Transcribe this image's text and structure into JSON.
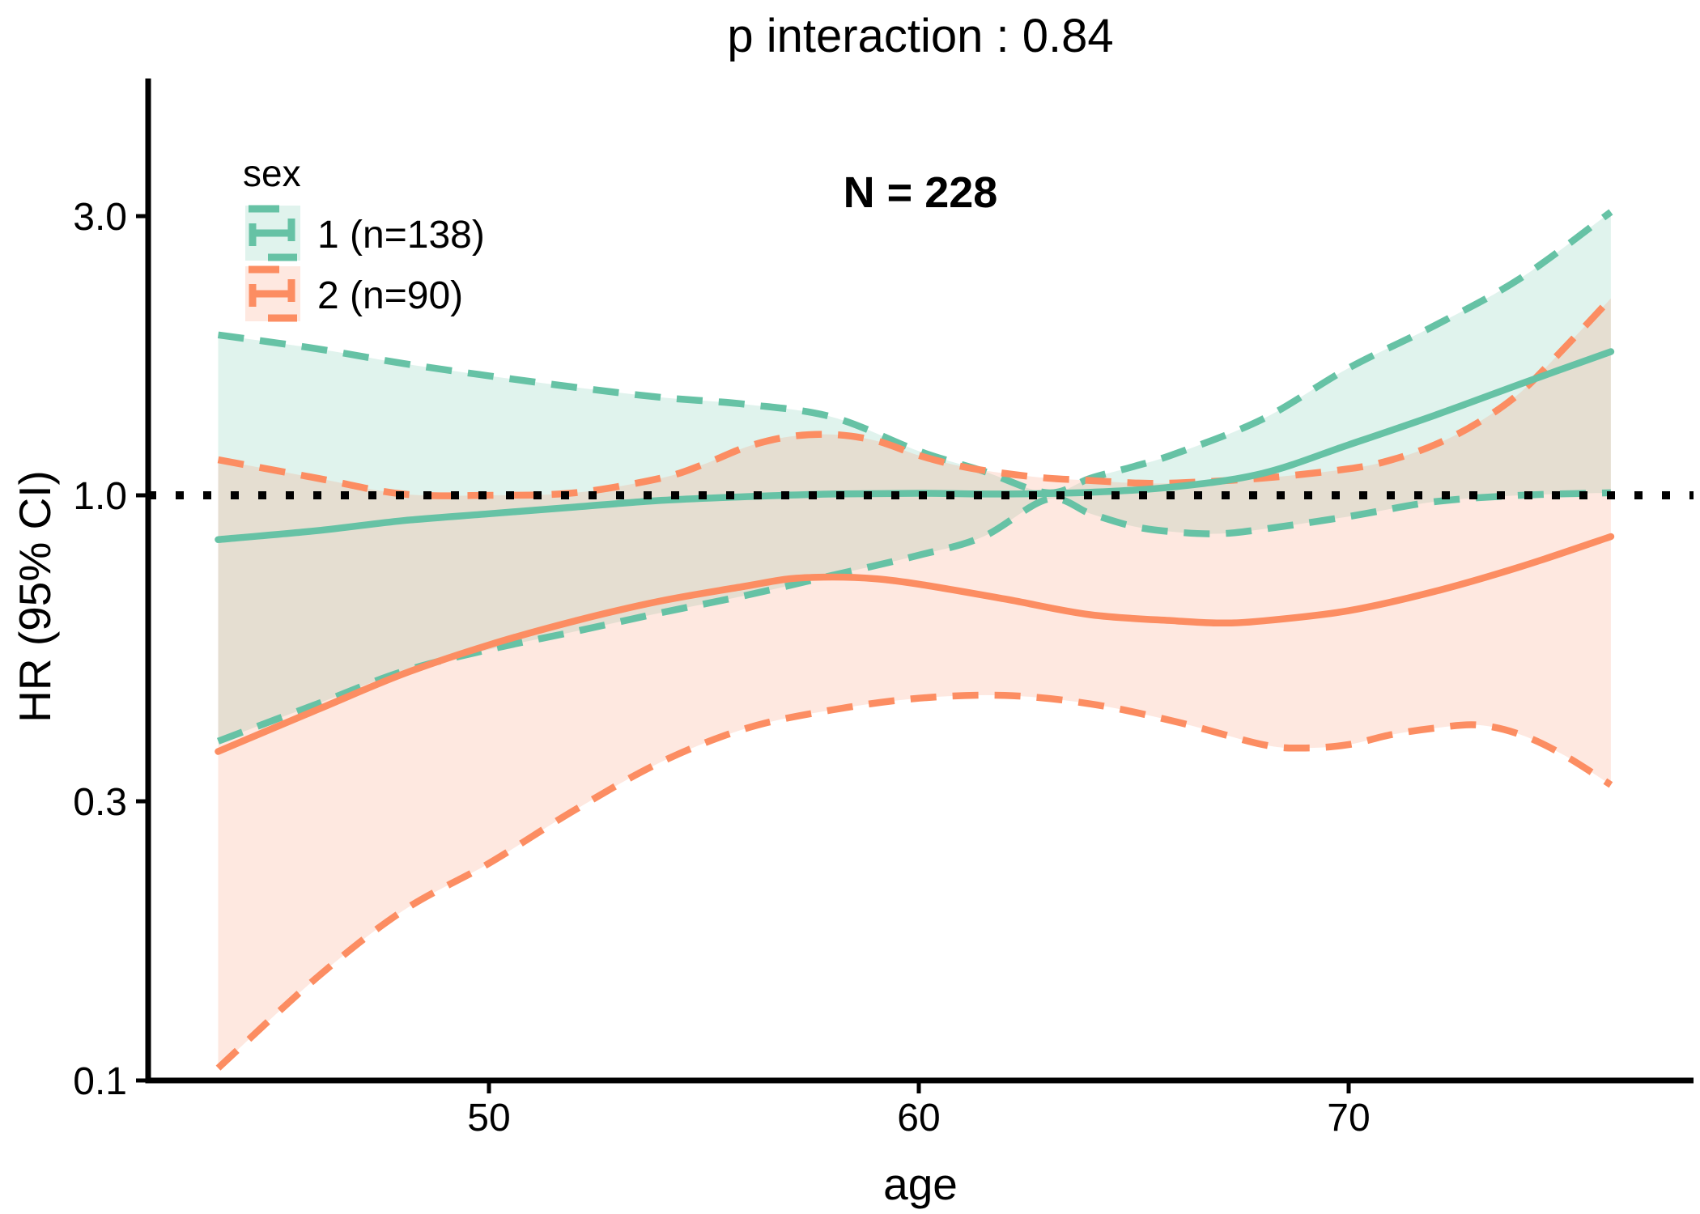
{
  "title": "p interaction : 0.84",
  "annotation": "N = 228",
  "legend": {
    "title": "sex",
    "items": [
      {
        "label": "1 (n=138)",
        "color": "#66C2A5",
        "fill": "rgba(102,194,165,0.2)"
      },
      {
        "label": "2 (n=90)",
        "color": "#FC8D62",
        "fill": "rgba(252,141,98,0.2)"
      }
    ]
  },
  "axes": {
    "x": {
      "label": "age",
      "ticks": [
        {
          "v": 50,
          "label": "50"
        },
        {
          "v": 60,
          "label": "60"
        },
        {
          "v": 70,
          "label": "70"
        }
      ],
      "range": [
        42.1,
        78.0
      ]
    },
    "y": {
      "label": "HR (95% CI)",
      "scale": "log10",
      "ticks": [
        {
          "v": 3.0,
          "label": "3.0"
        },
        {
          "v": 1.0,
          "label": "1.0"
        },
        {
          "v": 0.3,
          "label": "0.3"
        },
        {
          "v": 0.1,
          "label": "0.1"
        }
      ],
      "range": [
        0.1,
        5.1
      ]
    }
  },
  "reference_line": {
    "value": 1.0,
    "style": "dotted",
    "color": "#000000"
  },
  "chart_data": {
    "type": "line",
    "title": "p interaction : 0.84",
    "xlabel": "age",
    "ylabel": "HR (95% CI)",
    "x_range_data": [
      43.7,
      76.1
    ],
    "groups": [
      {
        "name": "1 (n=138)",
        "n": 138,
        "color": "#66C2A5",
        "fill": "rgba(102,194,165,0.2)",
        "mean": [
          [
            43.7,
            0.84
          ],
          [
            46,
            0.87
          ],
          [
            48,
            0.905
          ],
          [
            50,
            0.93
          ],
          [
            52,
            0.955
          ],
          [
            54,
            0.98
          ],
          [
            56,
            0.995
          ],
          [
            58,
            1.005
          ],
          [
            60,
            1.008
          ],
          [
            62,
            1.005
          ],
          [
            64,
            1.012
          ],
          [
            66,
            1.035
          ],
          [
            68,
            1.09
          ],
          [
            70,
            1.22
          ],
          [
            72,
            1.37
          ],
          [
            74,
            1.55
          ],
          [
            76.1,
            1.76
          ]
        ],
        "upper": [
          [
            43.7,
            1.88
          ],
          [
            46,
            1.78
          ],
          [
            48,
            1.68
          ],
          [
            50,
            1.6
          ],
          [
            52,
            1.53
          ],
          [
            54,
            1.47
          ],
          [
            56,
            1.43
          ],
          [
            58,
            1.36
          ],
          [
            60,
            1.19
          ],
          [
            61.5,
            1.1
          ],
          [
            63,
            1.01
          ],
          [
            64,
            1.07
          ],
          [
            65,
            1.12
          ],
          [
            66,
            1.18
          ],
          [
            68,
            1.35
          ],
          [
            70,
            1.65
          ],
          [
            72,
            1.95
          ],
          [
            74,
            2.35
          ],
          [
            76.1,
            3.05
          ]
        ],
        "lower": [
          [
            43.7,
            0.38
          ],
          [
            46,
            0.44
          ],
          [
            48,
            0.5
          ],
          [
            50,
            0.545
          ],
          [
            52,
            0.585
          ],
          [
            54,
            0.63
          ],
          [
            56,
            0.675
          ],
          [
            58,
            0.73
          ],
          [
            60,
            0.79
          ],
          [
            61.5,
            0.85
          ],
          [
            63,
            0.985
          ],
          [
            64,
            0.93
          ],
          [
            65,
            0.885
          ],
          [
            66,
            0.865
          ],
          [
            67,
            0.86
          ],
          [
            68,
            0.875
          ],
          [
            70,
            0.92
          ],
          [
            72,
            0.975
          ],
          [
            74,
            1.0
          ],
          [
            76.1,
            1.01
          ]
        ]
      },
      {
        "name": "2 (n=90)",
        "n": 90,
        "color": "#FC8D62",
        "fill": "rgba(252,141,98,0.2)",
        "mean": [
          [
            43.7,
            0.365
          ],
          [
            46,
            0.43
          ],
          [
            48,
            0.495
          ],
          [
            50,
            0.555
          ],
          [
            52,
            0.61
          ],
          [
            54,
            0.66
          ],
          [
            56,
            0.7
          ],
          [
            57,
            0.72
          ],
          [
            58,
            0.725
          ],
          [
            59,
            0.72
          ],
          [
            60,
            0.705
          ],
          [
            62,
            0.665
          ],
          [
            64,
            0.625
          ],
          [
            66,
            0.61
          ],
          [
            67,
            0.605
          ],
          [
            68,
            0.61
          ],
          [
            70,
            0.635
          ],
          [
            72,
            0.685
          ],
          [
            74,
            0.755
          ],
          [
            76.1,
            0.85
          ]
        ],
        "upper": [
          [
            43.7,
            1.15
          ],
          [
            46,
            1.07
          ],
          [
            48,
            1.005
          ],
          [
            50,
            1.0
          ],
          [
            52,
            1.01
          ],
          [
            54,
            1.07
          ],
          [
            55,
            1.13
          ],
          [
            56,
            1.21
          ],
          [
            57,
            1.26
          ],
          [
            58,
            1.27
          ],
          [
            59,
            1.24
          ],
          [
            60,
            1.17
          ],
          [
            61,
            1.12
          ],
          [
            62,
            1.09
          ],
          [
            63,
            1.07
          ],
          [
            64,
            1.06
          ],
          [
            65,
            1.05
          ],
          [
            66,
            1.05
          ],
          [
            68,
            1.07
          ],
          [
            70,
            1.11
          ],
          [
            71,
            1.15
          ],
          [
            72,
            1.22
          ],
          [
            73,
            1.33
          ],
          [
            74,
            1.5
          ],
          [
            75,
            1.78
          ],
          [
            76.1,
            2.17
          ]
        ],
        "lower": [
          [
            43.7,
            0.105
          ],
          [
            46,
            0.15
          ],
          [
            48,
            0.195
          ],
          [
            50,
            0.235
          ],
          [
            52,
            0.29
          ],
          [
            54,
            0.35
          ],
          [
            56,
            0.4
          ],
          [
            58,
            0.43
          ],
          [
            60,
            0.45
          ],
          [
            62,
            0.455
          ],
          [
            64,
            0.44
          ],
          [
            66,
            0.41
          ],
          [
            68,
            0.375
          ],
          [
            69,
            0.37
          ],
          [
            70,
            0.375
          ],
          [
            71,
            0.39
          ],
          [
            72,
            0.4
          ],
          [
            73,
            0.405
          ],
          [
            74,
            0.39
          ],
          [
            75,
            0.36
          ],
          [
            76.1,
            0.32
          ]
        ]
      }
    ]
  }
}
